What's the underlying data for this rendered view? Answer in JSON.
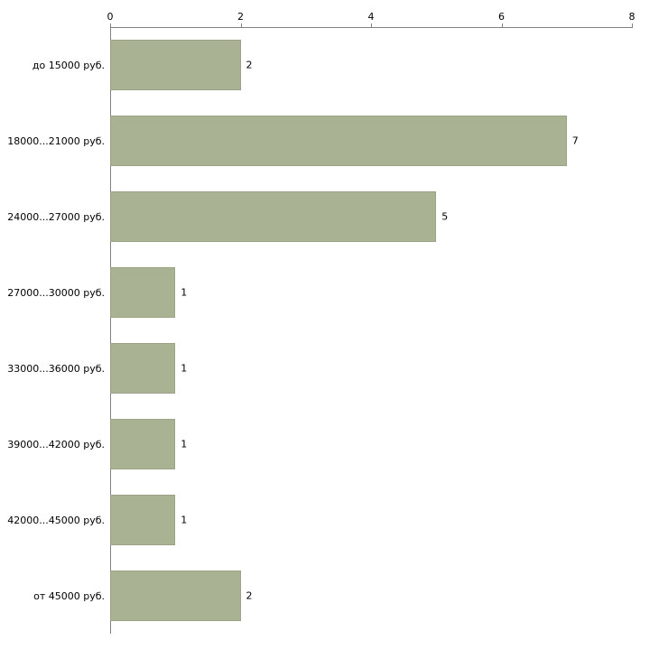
{
  "chart_data": {
    "type": "bar",
    "orientation": "horizontal",
    "title": "",
    "xlabel": "",
    "ylabel": "",
    "categories": [
      "до 15000 руб.",
      "18000...21000 руб.",
      "24000...27000 руб.",
      "27000...30000 руб.",
      "33000...36000 руб.",
      "39000...42000 руб.",
      "42000...45000 руб.",
      "от 45000 руб."
    ],
    "values": [
      2,
      7,
      5,
      1,
      1,
      1,
      1,
      2
    ],
    "xlim": [
      0,
      8
    ],
    "xticks": [
      0,
      2,
      4,
      6,
      8
    ],
    "value_labels": [
      2,
      7,
      5,
      1,
      1,
      1,
      1,
      2
    ],
    "grid": false,
    "legend": false,
    "axis_position": "top-left",
    "bar_color": "#a9b293",
    "bar_border_color": "#9aa383",
    "axis_color": "#808080",
    "text_color": "#000000",
    "background_color": "#ffffff"
  }
}
